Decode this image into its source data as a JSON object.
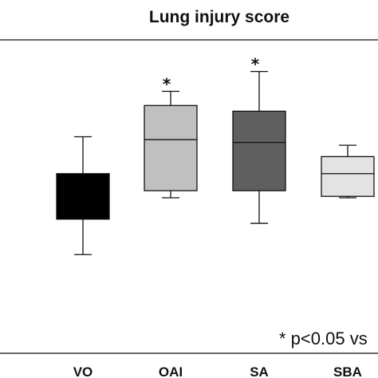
{
  "chart_data": {
    "type": "box",
    "title": "Lung injury score",
    "categories": [
      "VO",
      "OAI",
      "SA",
      "SBA"
    ],
    "colors": [
      "#000000",
      "#c0c0c0",
      "#5f5f5f",
      "#e3e3e3"
    ],
    "ylim": [
      0,
      10
    ],
    "boxes": [
      {
        "category": "VO",
        "min": 2.55,
        "q1": 3.8,
        "median": 3.8,
        "q3": 5.4,
        "max": 6.7,
        "significant": false
      },
      {
        "category": "OAI",
        "min": 4.55,
        "q1": 4.8,
        "median": 6.6,
        "q3": 7.8,
        "max": 8.3,
        "significant": true
      },
      {
        "category": "SA",
        "min": 3.65,
        "q1": 4.8,
        "median": 6.5,
        "q3": 7.6,
        "max": 9.0,
        "significant": true
      },
      {
        "category": "SBA",
        "min": 4.55,
        "q1": 4.6,
        "median": 5.4,
        "q3": 6.0,
        "max": 6.4,
        "significant": false
      }
    ],
    "significance_marker": "*",
    "annotation": "* p<0.05 vs"
  }
}
